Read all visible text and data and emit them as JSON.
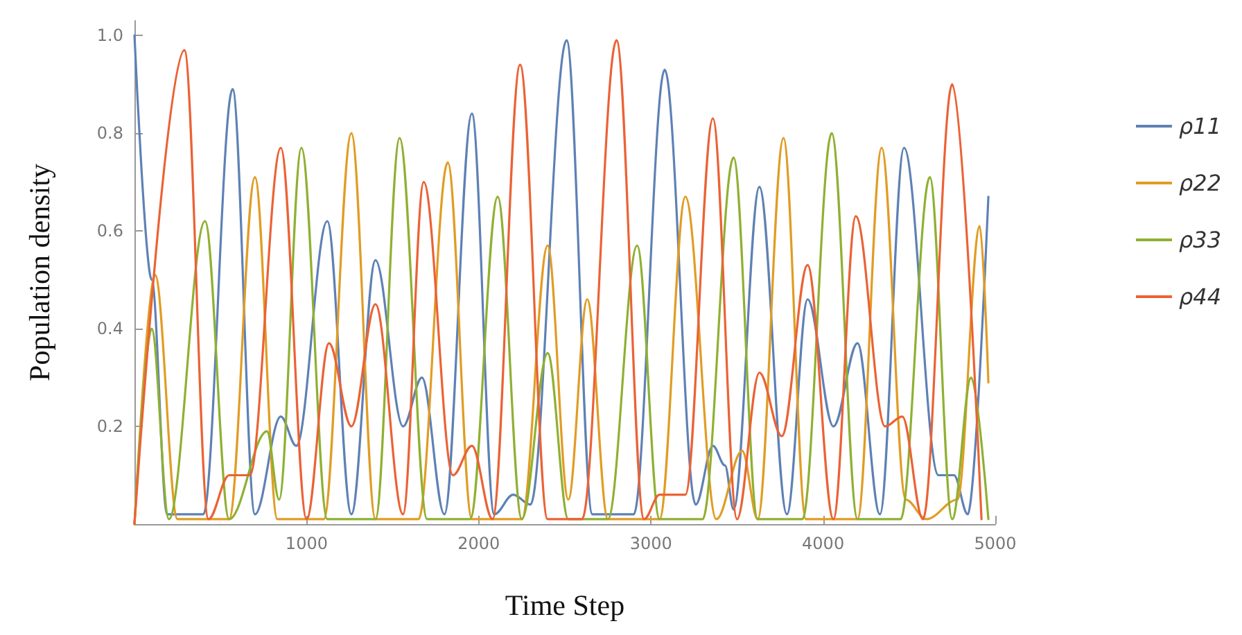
{
  "chart_data": {
    "type": "line",
    "xlabel": "Time Step",
    "ylabel": "Population density",
    "xlim": [
      0,
      5000
    ],
    "xticks": [
      1000,
      2000,
      3000,
      4000,
      5000
    ],
    "ylim": [
      0,
      1.03
    ],
    "yticks": [
      0.2,
      0.4,
      0.6,
      0.8,
      {
        "value": 1,
        "label": "1.0"
      }
    ],
    "grid": false,
    "legend": "right",
    "marker": "none",
    "line_style": "solid",
    "series": [
      {
        "name": "ρ11",
        "color": "#5e81b5",
        "x": [
          0,
          100,
          190,
          400,
          570,
          700,
          850,
          940,
          1120,
          1260,
          1400,
          1560,
          1670,
          1800,
          1960,
          2090,
          2200,
          2300,
          2510,
          2660,
          2900,
          3080,
          3260,
          3360,
          3430,
          3480,
          3630,
          3790,
          3910,
          4060,
          4200,
          4330,
          4470,
          4670,
          4760,
          4840,
          4960
        ],
        "values": [
          1.0,
          0.5,
          0.02,
          0.02,
          0.89,
          0.02,
          0.22,
          0.16,
          0.62,
          0.02,
          0.54,
          0.2,
          0.3,
          0.02,
          0.84,
          0.02,
          0.06,
          0.04,
          0.99,
          0.02,
          0.02,
          0.93,
          0.04,
          0.16,
          0.12,
          0.03,
          0.69,
          0.02,
          0.46,
          0.2,
          0.37,
          0.02,
          0.77,
          0.1,
          0.1,
          0.02,
          0.67
        ]
      },
      {
        "name": "ρ22",
        "color": "#e19c24",
        "x": [
          0,
          120,
          250,
          550,
          700,
          830,
          1100,
          1260,
          1400,
          1650,
          1820,
          1960,
          2250,
          2400,
          2520,
          2630,
          2750,
          3050,
          3200,
          3380,
          3530,
          3620,
          3770,
          3900,
          4200,
          4340,
          4480,
          4600,
          4780,
          4910,
          4960
        ],
        "values": [
          0,
          0.51,
          0.01,
          0.01,
          0.71,
          0.01,
          0.01,
          0.8,
          0.01,
          0.01,
          0.74,
          0.01,
          0.01,
          0.57,
          0.05,
          0.46,
          0.01,
          0.01,
          0.67,
          0.01,
          0.15,
          0.01,
          0.79,
          0.01,
          0.01,
          0.77,
          0.05,
          0.01,
          0.05,
          0.61,
          0.29
        ]
      },
      {
        "name": "ρ33",
        "color": "#8fb032",
        "x": [
          0,
          100,
          200,
          410,
          550,
          770,
          840,
          970,
          1120,
          1400,
          1540,
          1700,
          1950,
          2110,
          2250,
          2400,
          2520,
          2750,
          2920,
          3050,
          3300,
          3480,
          3620,
          3880,
          4050,
          4200,
          4450,
          4620,
          4750,
          4860,
          4960
        ],
        "values": [
          0,
          0.4,
          0.01,
          0.62,
          0.01,
          0.19,
          0.05,
          0.77,
          0.01,
          0.01,
          0.79,
          0.01,
          0.01,
          0.67,
          0.01,
          0.35,
          0.01,
          0.01,
          0.57,
          0.01,
          0.01,
          0.75,
          0.01,
          0.01,
          0.8,
          0.01,
          0.01,
          0.71,
          0.01,
          0.3,
          0.01
        ]
      },
      {
        "name": "ρ44",
        "color": "#eb6235",
        "x": [
          0,
          290,
          430,
          550,
          670,
          850,
          1000,
          1130,
          1260,
          1400,
          1560,
          1680,
          1850,
          1960,
          2080,
          2240,
          2400,
          2600,
          2800,
          2960,
          3050,
          3200,
          3360,
          3500,
          3630,
          3760,
          3910,
          4060,
          4190,
          4360,
          4460,
          4580,
          4750,
          4920
        ],
        "values": [
          0,
          0.97,
          0.01,
          0.1,
          0.1,
          0.77,
          0.01,
          0.37,
          0.2,
          0.45,
          0.02,
          0.7,
          0.1,
          0.16,
          0.01,
          0.94,
          0.01,
          0.01,
          0.99,
          0.01,
          0.06,
          0.06,
          0.83,
          0.01,
          0.31,
          0.18,
          0.53,
          0.01,
          0.63,
          0.2,
          0.22,
          0.01,
          0.9,
          0.01
        ]
      }
    ]
  }
}
